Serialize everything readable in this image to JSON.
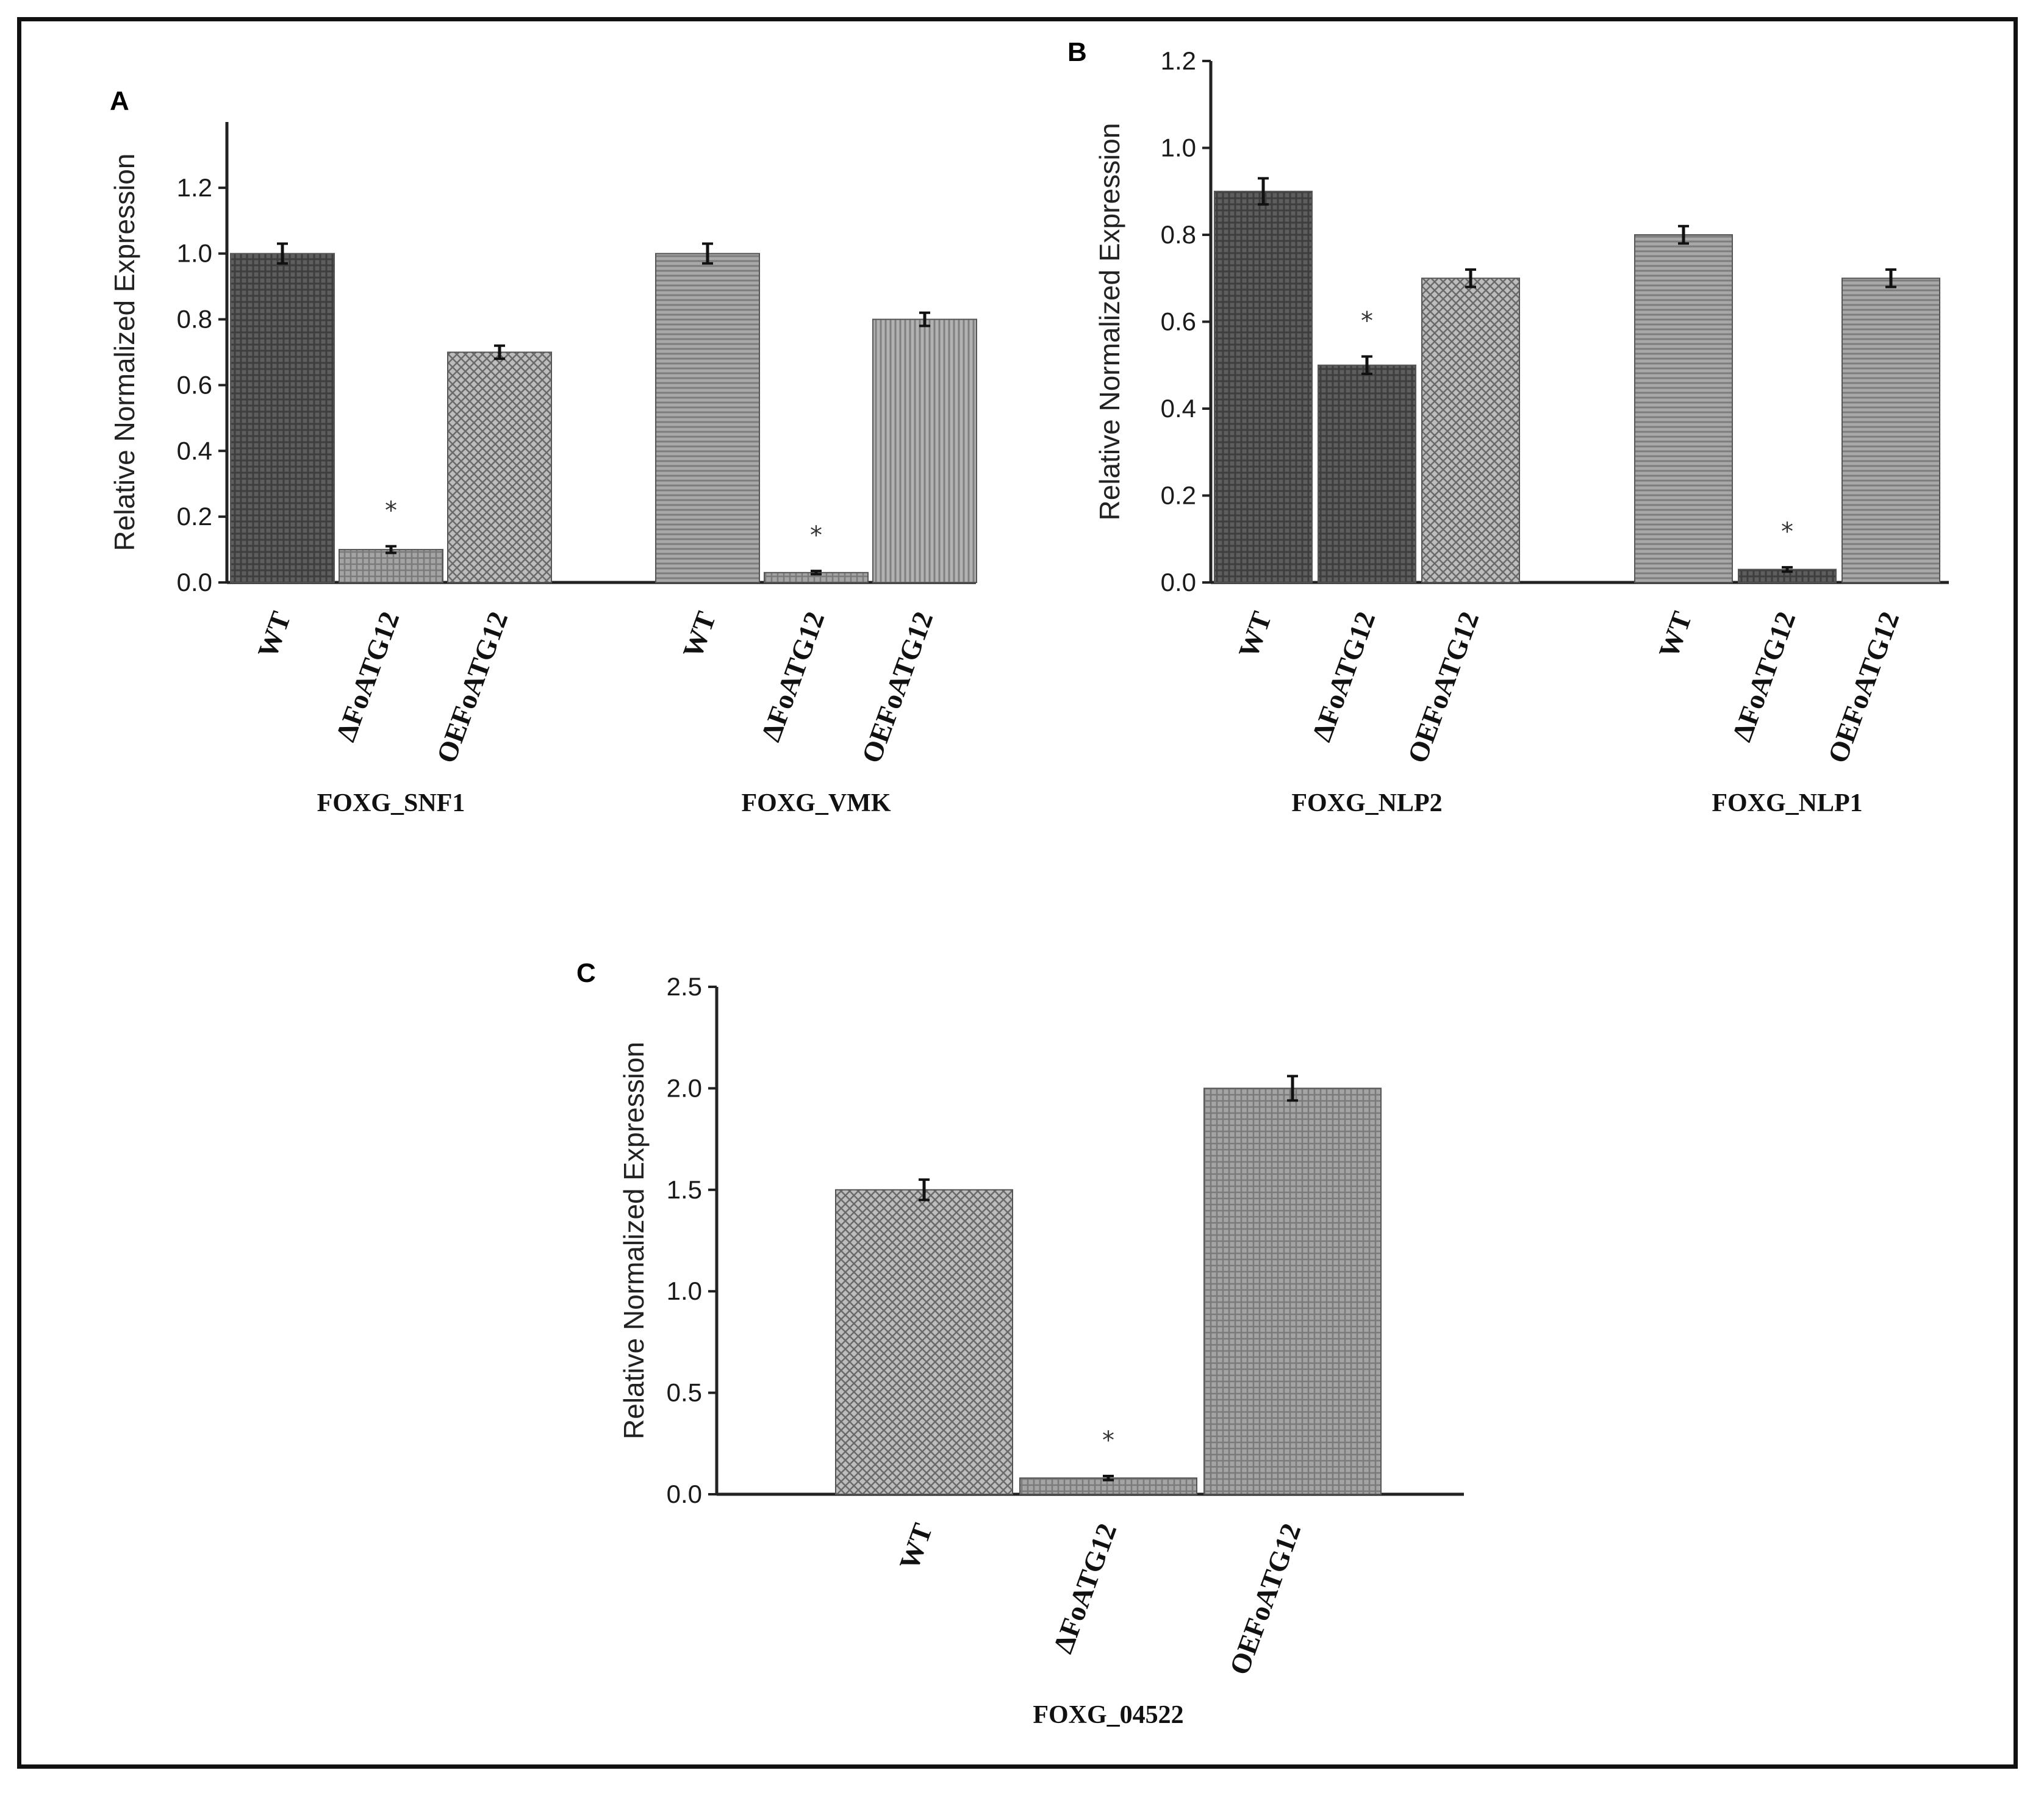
{
  "figure": {
    "colors": {
      "frame": "#111111",
      "axis": "#222222",
      "text": "#1a1a1a"
    }
  },
  "chart_data": [
    {
      "panel": "A",
      "type": "bar",
      "ylabel": "Relative Normalized Expression",
      "ylim": [
        0,
        1.4
      ],
      "yticks": [
        "0.0",
        "0.2",
        "0.4",
        "0.6",
        "0.8",
        "1.0",
        "1.2"
      ],
      "groups": [
        {
          "name": "FOXG_SNF1",
          "bars": [
            {
              "label": "WT",
              "value": 1.0,
              "error": 0.03,
              "pattern": "dark-grid",
              "star": ""
            },
            {
              "label": "ΔFoATG12",
              "value": 0.1,
              "error": 0.01,
              "pattern": "light-grid",
              "star": "*"
            },
            {
              "label": "OEFoATG12",
              "value": 0.7,
              "error": 0.02,
              "pattern": "crosshatch",
              "star": ""
            }
          ]
        },
        {
          "name": "FOXG_VMK",
          "bars": [
            {
              "label": "WT",
              "value": 1.0,
              "error": 0.03,
              "pattern": "hlines",
              "star": ""
            },
            {
              "label": "ΔFoATG12",
              "value": 0.03,
              "error": 0.005,
              "pattern": "light-grid",
              "star": "*"
            },
            {
              "label": "OEFoATG12",
              "value": 0.8,
              "error": 0.02,
              "pattern": "vlines",
              "star": ""
            }
          ]
        }
      ]
    },
    {
      "panel": "B",
      "type": "bar",
      "ylabel": "Relative Normalized Expression",
      "ylim": [
        0,
        1.2
      ],
      "yticks": [
        "0.0",
        "0.2",
        "0.4",
        "0.6",
        "0.8",
        "1.0",
        "1.2"
      ],
      "groups": [
        {
          "name": "FOXG_NLP2",
          "bars": [
            {
              "label": "WT",
              "value": 0.9,
              "error": 0.03,
              "pattern": "dark-grid",
              "star": ""
            },
            {
              "label": "ΔFoATG12",
              "value": 0.5,
              "error": 0.02,
              "pattern": "dark-grid",
              "star": "*"
            },
            {
              "label": "OEFoATG12",
              "value": 0.7,
              "error": 0.02,
              "pattern": "crosshatch",
              "star": ""
            }
          ]
        },
        {
          "name": "FOXG_NLP1",
          "bars": [
            {
              "label": "WT",
              "value": 0.8,
              "error": 0.02,
              "pattern": "hlines",
              "star": ""
            },
            {
              "label": "ΔFoATG12",
              "value": 0.03,
              "error": 0.005,
              "pattern": "dark-grid",
              "star": "*"
            },
            {
              "label": "OEFoATG12",
              "value": 0.7,
              "error": 0.02,
              "pattern": "hlines",
              "star": ""
            }
          ]
        }
      ]
    },
    {
      "panel": "C",
      "type": "bar",
      "ylabel": "Relative Normalized Expression",
      "ylim": [
        0,
        2.5
      ],
      "yticks": [
        "0.0",
        "0.5",
        "1.0",
        "1.5",
        "2.0",
        "2.5"
      ],
      "groups": [
        {
          "name": "FOXG_04522",
          "bars": [
            {
              "label": "WT",
              "value": 1.5,
              "error": 0.05,
              "pattern": "crosshatch",
              "star": ""
            },
            {
              "label": "ΔFoATG12",
              "value": 0.08,
              "error": 0.01,
              "pattern": "light-grid",
              "star": "*"
            },
            {
              "label": "OEFoATG12",
              "value": 2.0,
              "error": 0.06,
              "pattern": "light-grid",
              "star": ""
            }
          ]
        }
      ]
    }
  ]
}
